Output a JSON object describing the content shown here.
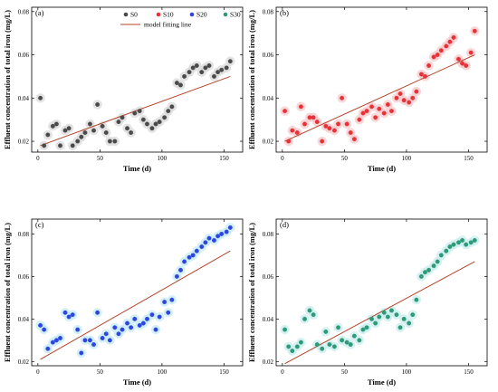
{
  "legend": {
    "series": [
      {
        "name": "S0",
        "color": "#4a4a4a"
      },
      {
        "name": "S10",
        "color": "#e8323a"
      },
      {
        "name": "S20",
        "color": "#2f45e0"
      },
      {
        "name": "S30",
        "color": "#2e9a78"
      }
    ],
    "fit_label": "model fitting line",
    "fit_color": "#b5432a"
  },
  "chart_data": [
    {
      "type": "scatter",
      "panel_label": "(a)",
      "series_name": "S0",
      "point_color": "#4a4a4a",
      "glow_color": "#d9d9d9",
      "xlabel": "Time (d)",
      "ylabel": "Effluent concentration of total iron (mg/L)",
      "xlim": [
        -5,
        165
      ],
      "ylim": [
        0.015,
        0.082
      ],
      "xticks": [
        0,
        50,
        100,
        150
      ],
      "yticks": [
        0.02,
        0.04,
        0.06,
        0.08
      ],
      "x": [
        2,
        5,
        8,
        12,
        15,
        18,
        22,
        25,
        28,
        32,
        35,
        38,
        42,
        45,
        48,
        52,
        55,
        58,
        62,
        65,
        68,
        72,
        75,
        78,
        82,
        85,
        88,
        92,
        95,
        98,
        102,
        105,
        108,
        112,
        115,
        118,
        122,
        125,
        128,
        132,
        135,
        138,
        142,
        145,
        148,
        152,
        155
      ],
      "y": [
        0.04,
        0.018,
        0.023,
        0.027,
        0.028,
        0.018,
        0.025,
        0.026,
        0.018,
        0.02,
        0.022,
        0.024,
        0.028,
        0.025,
        0.037,
        0.027,
        0.024,
        0.02,
        0.02,
        0.029,
        0.031,
        0.026,
        0.024,
        0.033,
        0.034,
        0.03,
        0.028,
        0.026,
        0.028,
        0.029,
        0.031,
        0.034,
        0.036,
        0.047,
        0.046,
        0.05,
        0.052,
        0.054,
        0.055,
        0.052,
        0.054,
        0.055,
        0.05,
        0.052,
        0.053,
        0.054,
        0.057
      ],
      "fit": {
        "x": [
          2,
          155
        ],
        "y": [
          0.018,
          0.05
        ]
      }
    },
    {
      "type": "scatter",
      "panel_label": "(b)",
      "series_name": "S10",
      "point_color": "#e8323a",
      "glow_color": "#f6c9cb",
      "xlabel": "Time (d)",
      "ylabel": "Effluent concentration of total iron (mg/L)",
      "xlim": [
        -5,
        165
      ],
      "ylim": [
        0.015,
        0.082
      ],
      "xticks": [
        0,
        50,
        100,
        150
      ],
      "yticks": [
        0.02,
        0.04,
        0.06,
        0.08
      ],
      "x": [
        2,
        5,
        8,
        12,
        15,
        18,
        22,
        25,
        28,
        32,
        35,
        38,
        42,
        45,
        48,
        52,
        55,
        58,
        62,
        65,
        68,
        72,
        75,
        78,
        82,
        85,
        88,
        92,
        95,
        98,
        102,
        105,
        108,
        112,
        115,
        118,
        122,
        125,
        128,
        132,
        135,
        138,
        142,
        145,
        148,
        152,
        155
      ],
      "y": [
        0.034,
        0.02,
        0.025,
        0.024,
        0.036,
        0.028,
        0.031,
        0.031,
        0.029,
        0.02,
        0.027,
        0.026,
        0.025,
        0.028,
        0.04,
        0.028,
        0.024,
        0.021,
        0.03,
        0.033,
        0.034,
        0.036,
        0.031,
        0.035,
        0.033,
        0.037,
        0.034,
        0.04,
        0.042,
        0.039,
        0.038,
        0.04,
        0.043,
        0.051,
        0.05,
        0.055,
        0.059,
        0.06,
        0.062,
        0.064,
        0.066,
        0.068,
        0.058,
        0.056,
        0.055,
        0.061,
        0.071
      ],
      "fit": {
        "x": [
          2,
          155
        ],
        "y": [
          0.02,
          0.06
        ]
      }
    },
    {
      "type": "scatter",
      "panel_label": "(c)",
      "series_name": "S20",
      "point_color": "#2f45e0",
      "glow_color": "#c4ebf7",
      "xlabel": "Time (d)",
      "ylabel": "Effluent concentration of total iron (mg/L)",
      "xlim": [
        -5,
        165
      ],
      "ylim": [
        0.018,
        0.087
      ],
      "xticks": [
        0,
        50,
        100,
        150
      ],
      "yticks": [
        0.02,
        0.04,
        0.06,
        0.08
      ],
      "x": [
        2,
        5,
        8,
        12,
        15,
        18,
        22,
        25,
        28,
        32,
        35,
        38,
        42,
        45,
        48,
        52,
        55,
        58,
        62,
        65,
        68,
        72,
        75,
        78,
        82,
        85,
        88,
        92,
        95,
        98,
        102,
        105,
        108,
        112,
        115,
        118,
        122,
        125,
        128,
        132,
        135,
        138,
        142,
        145,
        148,
        152,
        155
      ],
      "y": [
        0.037,
        0.035,
        0.026,
        0.029,
        0.03,
        0.031,
        0.043,
        0.041,
        0.042,
        0.035,
        0.024,
        0.03,
        0.03,
        0.028,
        0.043,
        0.031,
        0.033,
        0.03,
        0.036,
        0.033,
        0.035,
        0.038,
        0.036,
        0.04,
        0.037,
        0.038,
        0.04,
        0.042,
        0.035,
        0.041,
        0.048,
        0.043,
        0.049,
        0.06,
        0.063,
        0.067,
        0.069,
        0.07,
        0.072,
        0.074,
        0.076,
        0.078,
        0.077,
        0.079,
        0.08,
        0.081,
        0.083
      ],
      "fit": {
        "x": [
          2,
          155
        ],
        "y": [
          0.021,
          0.072
        ]
      }
    },
    {
      "type": "scatter",
      "panel_label": "(d)",
      "series_name": "S30",
      "point_color": "#2e9a78",
      "glow_color": "#c8ecee",
      "xlabel": "Time (d)",
      "ylabel": "Effluent concentration of total iron (mg/L)",
      "xlim": [
        -5,
        165
      ],
      "ylim": [
        0.018,
        0.087
      ],
      "xticks": [
        0,
        50,
        100,
        150
      ],
      "yticks": [
        0.02,
        0.04,
        0.06,
        0.08
      ],
      "x": [
        2,
        5,
        8,
        12,
        15,
        18,
        22,
        25,
        28,
        32,
        35,
        38,
        42,
        45,
        48,
        52,
        55,
        58,
        62,
        65,
        68,
        72,
        75,
        78,
        82,
        85,
        88,
        92,
        95,
        98,
        102,
        105,
        108,
        112,
        115,
        118,
        122,
        125,
        128,
        132,
        135,
        138,
        142,
        145,
        148,
        152,
        155
      ],
      "y": [
        0.035,
        0.027,
        0.025,
        0.027,
        0.029,
        0.04,
        0.044,
        0.042,
        0.028,
        0.026,
        0.034,
        0.028,
        0.027,
        0.036,
        0.03,
        0.029,
        0.028,
        0.032,
        0.03,
        0.035,
        0.036,
        0.04,
        0.038,
        0.041,
        0.043,
        0.041,
        0.044,
        0.042,
        0.036,
        0.04,
        0.038,
        0.042,
        0.049,
        0.06,
        0.062,
        0.063,
        0.065,
        0.067,
        0.07,
        0.072,
        0.074,
        0.075,
        0.076,
        0.077,
        0.075,
        0.076,
        0.077
      ],
      "fit": {
        "x": [
          2,
          155
        ],
        "y": [
          0.019,
          0.067
        ]
      }
    }
  ]
}
